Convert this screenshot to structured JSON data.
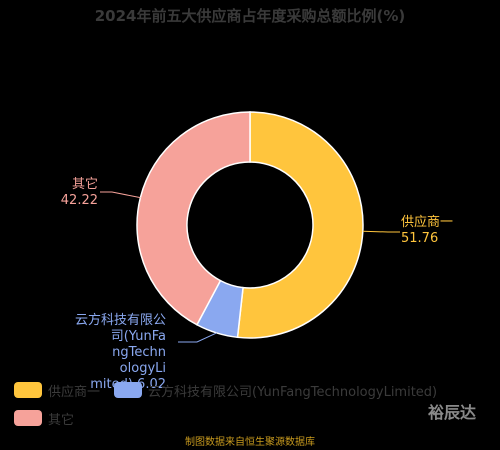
{
  "chart_data": {
    "type": "pie",
    "title": "2024年前五大供应商占年度采购总额比例(%)",
    "categories": [
      "供应商一",
      "云方科技有限公司(YunFangTechnologyLimited)",
      "其它"
    ],
    "values": [
      51.76,
      6.02,
      42.22
    ],
    "colors": [
      "#FFC53D",
      "#8AA8F0",
      "#F6A29A"
    ],
    "legend_position": "bottom-left"
  },
  "labels": {
    "slice0": [
      "供应商一",
      "51.76"
    ],
    "slice1": [
      "云方科技有限公",
      "司(YunFa",
      "ngTechn",
      "ologyLi",
      "mited) 6.02"
    ],
    "slice2": [
      "其它",
      "42.22"
    ]
  },
  "legend": {
    "items": [
      "供应商一",
      "云方科技有限公司(YunFangTechnologyLimited)",
      "其它"
    ]
  },
  "watermark": "裕辰达",
  "source": "制图数据来自恒生聚源数据库"
}
